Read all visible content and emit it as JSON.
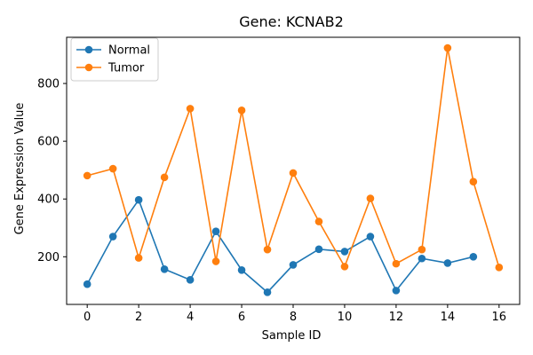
{
  "chart_data": {
    "type": "line",
    "title": "Gene: KCNAB2",
    "xlabel": "Sample ID",
    "ylabel": "Gene Expression Value",
    "xlim": [
      -0.8,
      16.8
    ],
    "ylim": [
      35,
      960
    ],
    "xticks": [
      0,
      2,
      4,
      6,
      8,
      10,
      12,
      14,
      16
    ],
    "yticks": [
      200,
      400,
      600,
      800
    ],
    "grid": false,
    "legend_position": "top-left",
    "series": [
      {
        "name": "Normal",
        "color": "#1f77b4",
        "x": [
          0,
          1,
          2,
          3,
          4,
          5,
          6,
          7,
          8,
          9,
          10,
          11,
          12,
          13,
          14,
          15
        ],
        "y": [
          105,
          270,
          397,
          157,
          120,
          288,
          154,
          77,
          172,
          226,
          218,
          270,
          83,
          194,
          178,
          200
        ]
      },
      {
        "name": "Tumor",
        "color": "#ff7f0e",
        "x": [
          0,
          1,
          2,
          3,
          4,
          5,
          6,
          7,
          8,
          9,
          10,
          11,
          12,
          13,
          14,
          15,
          16
        ],
        "y": [
          481,
          505,
          196,
          475,
          713,
          184,
          707,
          225,
          490,
          322,
          166,
          402,
          176,
          225,
          923,
          460,
          163
        ]
      }
    ]
  }
}
